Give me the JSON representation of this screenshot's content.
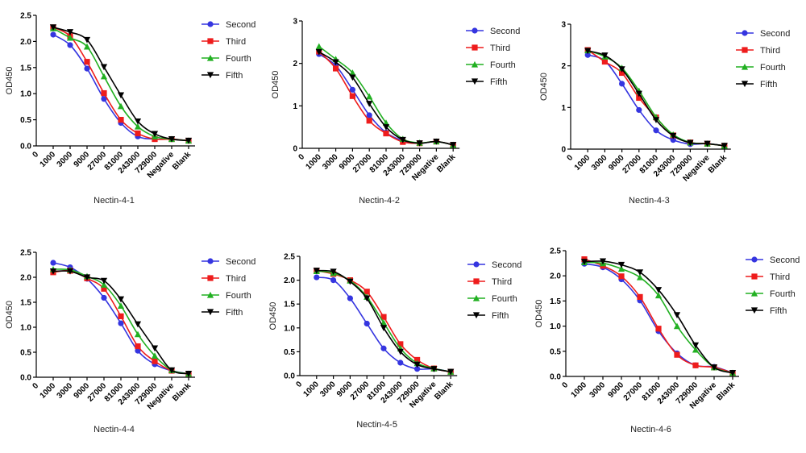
{
  "chart_data": [
    {
      "type": "line",
      "title": "Nectin-4-1",
      "ylabel": "OD450",
      "ylim": [
        0,
        2.5
      ],
      "yticks": [
        "0.0",
        "0.5",
        "1.0",
        "1.5",
        "2.0",
        "2.5"
      ],
      "xtick_labels": [
        "0",
        "1000",
        "3000",
        "9000",
        "27000",
        "81000",
        "243000",
        "729000",
        "Negative",
        "Blank"
      ],
      "categories": [
        "1000",
        "3000",
        "9000",
        "27000",
        "81000",
        "243000",
        "729000",
        "Negative",
        "Blank"
      ],
      "legend_position": "right",
      "grid": false,
      "series": [
        {
          "name": "Second",
          "values": [
            2.13,
            1.93,
            1.48,
            0.9,
            0.44,
            0.18,
            0.13,
            0.13,
            0.1
          ]
        },
        {
          "name": "Third",
          "values": [
            2.27,
            2.1,
            1.61,
            1.01,
            0.5,
            0.24,
            0.13,
            0.13,
            0.1
          ]
        },
        {
          "name": "Fourth",
          "values": [
            2.25,
            2.07,
            1.9,
            1.33,
            0.76,
            0.37,
            0.18,
            0.13,
            0.1
          ]
        },
        {
          "name": "Fifth",
          "values": [
            2.27,
            2.18,
            2.03,
            1.51,
            0.97,
            0.47,
            0.23,
            0.13,
            0.1
          ]
        }
      ]
    },
    {
      "type": "line",
      "title": "Nectin-4-2",
      "ylabel": "OD450",
      "ylim": [
        0,
        3
      ],
      "yticks": [
        "0",
        "1",
        "2",
        "3"
      ],
      "xtick_labels": [
        "0",
        "1000",
        "3000",
        "9000",
        "27000",
        "81000",
        "243000",
        "729000",
        "Negative",
        "Blank"
      ],
      "categories": [
        "1000",
        "3000",
        "9000",
        "27000",
        "81000",
        "243000",
        "729000",
        "Negative",
        "Blank"
      ],
      "legend_position": "right",
      "grid": false,
      "series": [
        {
          "name": "Second",
          "values": [
            2.22,
            1.95,
            1.38,
            0.78,
            0.37,
            0.18,
            0.12,
            0.16,
            0.08
          ]
        },
        {
          "name": "Third",
          "values": [
            2.28,
            1.88,
            1.23,
            0.65,
            0.35,
            0.15,
            0.12,
            0.16,
            0.08
          ]
        },
        {
          "name": "Fourth",
          "values": [
            2.4,
            2.1,
            1.78,
            1.22,
            0.6,
            0.22,
            0.13,
            0.16,
            0.08
          ]
        },
        {
          "name": "Fifth",
          "values": [
            2.27,
            2.03,
            1.67,
            1.05,
            0.5,
            0.2,
            0.12,
            0.16,
            0.08
          ]
        }
      ]
    },
    {
      "type": "line",
      "title": "Nectin-4-3",
      "ylabel": "OD450",
      "ylim": [
        0,
        3
      ],
      "yticks": [
        "0",
        "1",
        "2",
        "3"
      ],
      "xtick_labels": [
        "0",
        "1000",
        "3000",
        "9000",
        "27000",
        "81000",
        "243000",
        "729000",
        "Negative",
        "Blank"
      ],
      "categories": [
        "1000",
        "3000",
        "9000",
        "27000",
        "81000",
        "243000",
        "729000",
        "Negative",
        "Blank"
      ],
      "legend_position": "right",
      "grid": false,
      "series": [
        {
          "name": "Second",
          "values": [
            2.26,
            2.12,
            1.57,
            0.94,
            0.45,
            0.22,
            0.12,
            0.13,
            0.08
          ]
        },
        {
          "name": "Third",
          "values": [
            2.38,
            2.1,
            1.83,
            1.23,
            0.76,
            0.33,
            0.16,
            0.13,
            0.08
          ]
        },
        {
          "name": "Fourth",
          "values": [
            2.37,
            2.22,
            1.95,
            1.4,
            0.77,
            0.35,
            0.16,
            0.13,
            0.08
          ]
        },
        {
          "name": "Fifth",
          "values": [
            2.36,
            2.25,
            1.92,
            1.33,
            0.7,
            0.32,
            0.15,
            0.13,
            0.08
          ]
        }
      ]
    },
    {
      "type": "line",
      "title": "Nectin-4-4",
      "ylabel": "OD450",
      "ylim": [
        0,
        2.5
      ],
      "yticks": [
        "0.0",
        "0.5",
        "1.0",
        "1.5",
        "2.0",
        "2.5"
      ],
      "xtick_labels": [
        "0",
        "1000",
        "3000",
        "9000",
        "27000",
        "81000",
        "243000",
        "729000",
        "Negative",
        "Blank"
      ],
      "categories": [
        "1000",
        "3000",
        "9000",
        "27000",
        "81000",
        "243000",
        "729000",
        "Negative",
        "Blank"
      ],
      "legend_position": "right",
      "grid": false,
      "series": [
        {
          "name": "Second",
          "values": [
            2.29,
            2.2,
            1.97,
            1.59,
            1.08,
            0.53,
            0.26,
            0.13,
            0.07
          ]
        },
        {
          "name": "Third",
          "values": [
            2.1,
            2.13,
            1.98,
            1.77,
            1.22,
            0.62,
            0.32,
            0.13,
            0.07
          ]
        },
        {
          "name": "Fourth",
          "values": [
            2.16,
            2.15,
            2.02,
            1.85,
            1.43,
            0.86,
            0.43,
            0.14,
            0.07
          ]
        },
        {
          "name": "Fifth",
          "values": [
            2.12,
            2.12,
            2.0,
            1.93,
            1.56,
            1.06,
            0.58,
            0.14,
            0.07
          ]
        }
      ]
    },
    {
      "type": "line",
      "title": "Nectin-4-5",
      "ylabel": "OD450",
      "ylim": [
        0,
        2.5
      ],
      "yticks": [
        "0.0",
        "0.5",
        "1.0",
        "1.5",
        "2.0",
        "2.5"
      ],
      "xtick_labels": [
        "0",
        "1000",
        "3000",
        "9000",
        "27000",
        "81000",
        "243000",
        "729000",
        "Negative",
        "Blank"
      ],
      "categories": [
        "1000",
        "3000",
        "9000",
        "27000",
        "81000",
        "243000",
        "729000",
        "Negative",
        "Blank"
      ],
      "legend_position": "right",
      "grid": false,
      "series": [
        {
          "name": "Second",
          "values": [
            2.06,
            2.0,
            1.62,
            1.09,
            0.57,
            0.27,
            0.14,
            0.14,
            0.08
          ]
        },
        {
          "name": "Third",
          "values": [
            2.2,
            2.13,
            2.0,
            1.76,
            1.23,
            0.66,
            0.33,
            0.15,
            0.08
          ]
        },
        {
          "name": "Fourth",
          "values": [
            2.19,
            2.15,
            1.99,
            1.65,
            1.11,
            0.57,
            0.26,
            0.15,
            0.08
          ]
        },
        {
          "name": "Fifth",
          "values": [
            2.2,
            2.18,
            1.97,
            1.62,
            1.0,
            0.5,
            0.23,
            0.14,
            0.08
          ]
        }
      ]
    },
    {
      "type": "line",
      "title": "Nectin-4-6",
      "ylabel": "OD450",
      "ylim": [
        0,
        2.5
      ],
      "yticks": [
        "0.0",
        "0.5",
        "1.0",
        "1.5",
        "2.0",
        "2.5"
      ],
      "xtick_labels": [
        "0",
        "1000",
        "3000",
        "9000",
        "27000",
        "81000",
        "243000",
        "729000",
        "Negative",
        "Blank"
      ],
      "categories": [
        "1000",
        "3000",
        "9000",
        "27000",
        "81000",
        "243000",
        "729000",
        "Negative",
        "Blank"
      ],
      "legend_position": "right",
      "grid": false,
      "series": [
        {
          "name": "Second",
          "values": [
            2.24,
            2.17,
            1.93,
            1.51,
            0.9,
            0.46,
            0.22,
            0.19,
            0.07
          ]
        },
        {
          "name": "Third",
          "values": [
            2.33,
            2.2,
            1.99,
            1.58,
            0.95,
            0.43,
            0.22,
            0.18,
            0.07
          ]
        },
        {
          "name": "Fourth",
          "values": [
            2.27,
            2.25,
            2.14,
            1.97,
            1.61,
            1.0,
            0.53,
            0.18,
            0.07
          ]
        },
        {
          "name": "Fifth",
          "values": [
            2.28,
            2.29,
            2.22,
            2.07,
            1.72,
            1.22,
            0.62,
            0.18,
            0.07
          ]
        }
      ]
    }
  ],
  "series_style": [
    {
      "color": "#3535e0",
      "marker": "circle"
    },
    {
      "color": "#ee1c1c",
      "marker": "square"
    },
    {
      "color": "#22b022",
      "marker": "triangle-up"
    },
    {
      "color": "#000000",
      "marker": "triangle-down"
    }
  ]
}
